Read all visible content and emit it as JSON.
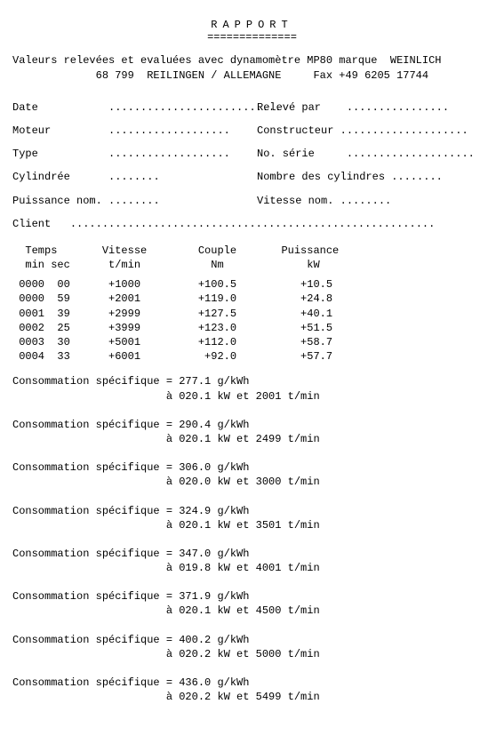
{
  "title": "RAPPORT",
  "title_underline": "==============",
  "header_text_1": "Valeurs relevées et evaluées avec dynamomètre MP80 marque  WEINLICH",
  "header_text_2": "             68 799  REILINGEN / ALLEMAGNE     Fax +49 6205 17744",
  "fields": {
    "rows": [
      {
        "left_label": "Date",
        "left_dots": "...........................",
        "right_label": "Relevé par",
        "right_dots": "................"
      },
      {
        "left_label": "Moteur",
        "left_dots": "...................",
        "right_label": "Constructeur",
        "right_dots": "...................."
      },
      {
        "left_label": "Type",
        "left_dots": "...................",
        "right_label": "No. série",
        "right_dots": "...................."
      },
      {
        "left_label": "Cylindrée",
        "left_dots": "........",
        "right_label": "Nombre des cylindres",
        "right_dots": "........"
      },
      {
        "left_label": "Puissance nom.",
        "left_dots": "........",
        "right_label": "Vitesse nom.",
        "right_dots": "........"
      }
    ],
    "client_label": "Client",
    "client_dots": "........................................................."
  },
  "table": {
    "header1": "  Temps       Vitesse        Couple       Puissance",
    "header2": "  min sec      t/min           Nm             kW",
    "rows": [
      " 0000  00      +1000         +100.5          +10.5",
      " 0000  59      +2001         +119.0          +24.8",
      " 0001  39      +2999         +127.5          +40.1",
      " 0002  25      +3999         +123.0          +51.5",
      " 0003  30      +5001         +112.0          +58.7",
      " 0004  33      +6001          +92.0          +57.7"
    ]
  },
  "consumption_label": "Consommation spécifique",
  "consumption": [
    {
      "line1": "= 277.1 g/kWh",
      "line2": "  à 020.1 kW et 2001 t/min"
    },
    {
      "line1": "= 290.4 g/kWh",
      "line2": "  à 020.1 kW et 2499 t/min"
    },
    {
      "line1": "= 306.0 g/kWh",
      "line2": "  à 020.0 kW et 3000 t/min"
    },
    {
      "line1": "= 324.9 g/kWh",
      "line2": "  à 020.1 kW et 3501 t/min"
    },
    {
      "line1": "= 347.0 g/kWh",
      "line2": "  à 019.8 kW et 4001 t/min"
    },
    {
      "line1": "= 371.9 g/kWh",
      "line2": "  à 020.1 kW et 4500 t/min"
    },
    {
      "line1": "= 400.2 g/kWh",
      "line2": "  à 020.2 kW et 5000 t/min"
    },
    {
      "line1": "= 436.0 g/kWh",
      "line2": "  à 020.2 kW et 5499 t/min"
    }
  ]
}
